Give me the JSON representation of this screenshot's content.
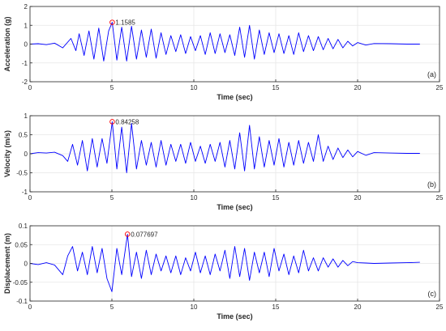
{
  "chart_data": [
    {
      "type": "line",
      "panel_label": "(a)",
      "xlabel": "Time (sec)",
      "ylabel": "Acceleration (g)",
      "xlim": [
        0,
        25
      ],
      "ylim": [
        -2,
        2
      ],
      "xticks": [
        "0",
        "5",
        "10",
        "15",
        "20",
        "25"
      ],
      "yticks": [
        "-2",
        "-1",
        "0",
        "1",
        "2"
      ],
      "grid": true,
      "series_color": "#0000ff",
      "peak": {
        "x": 5.02,
        "y": 1.1585,
        "label": "1.1585"
      },
      "series": [
        {
          "x": [
            0,
            0.5,
            1,
            1.5,
            2,
            2.5,
            2.8,
            3,
            3.3,
            3.6,
            3.9,
            4.2,
            4.5,
            4.8,
            5.02,
            5.3,
            5.6,
            5.9,
            6.2,
            6.5,
            6.8,
            7.1,
            7.4,
            7.7,
            8,
            8.3,
            8.6,
            8.9,
            9.2,
            9.5,
            9.8,
            10.1,
            10.4,
            10.7,
            11,
            11.3,
            11.6,
            11.9,
            12.2,
            12.5,
            12.8,
            13.1,
            13.4,
            13.7,
            14,
            14.3,
            14.6,
            14.9,
            15.2,
            15.5,
            15.8,
            16.1,
            16.4,
            16.7,
            17,
            17.3,
            17.6,
            17.9,
            18.2,
            18.5,
            18.8,
            19.1,
            19.4,
            19.7,
            20,
            20.5,
            21,
            22,
            23,
            23.8
          ],
          "values": [
            0,
            0.02,
            -0.03,
            0.05,
            -0.2,
            0.3,
            -0.35,
            0.55,
            -0.6,
            0.7,
            -0.8,
            0.85,
            -0.9,
            0.7,
            1.1585,
            -0.85,
            0.9,
            -0.9,
            0.95,
            -0.8,
            0.75,
            -0.7,
            0.8,
            -0.75,
            0.6,
            -0.55,
            0.45,
            -0.4,
            0.5,
            -0.5,
            0.4,
            -0.35,
            0.45,
            -0.55,
            0.6,
            -0.5,
            0.55,
            -0.45,
            0.5,
            -0.6,
            0.9,
            -0.7,
            1.0,
            -0.8,
            0.75,
            -0.55,
            0.6,
            -0.45,
            0.55,
            -0.5,
            0.45,
            -0.55,
            0.6,
            -0.4,
            0.45,
            -0.35,
            0.4,
            -0.3,
            0.3,
            -0.25,
            0.25,
            -0.2,
            0.15,
            -0.1,
            0.08,
            -0.05,
            0.03,
            0.02,
            0,
            0
          ]
        }
      ]
    },
    {
      "type": "line",
      "panel_label": "(b)",
      "xlabel": "Time (sec)",
      "ylabel": "Velocity (m/s)",
      "xlim": [
        0,
        25
      ],
      "ylim": [
        -1,
        1
      ],
      "xticks": [
        "0",
        "5",
        "10",
        "15",
        "20",
        "25"
      ],
      "yticks": [
        "-1",
        "-0.5",
        "0",
        "0.5",
        "1"
      ],
      "grid": true,
      "series_color": "#0000ff",
      "peak": {
        "x": 5.02,
        "y": 0.84258,
        "label": "0.84258"
      },
      "series": [
        {
          "x": [
            0,
            0.5,
            1,
            1.5,
            2,
            2.3,
            2.6,
            2.9,
            3.2,
            3.5,
            3.8,
            4.1,
            4.4,
            4.7,
            5.02,
            5.3,
            5.6,
            5.9,
            6.2,
            6.5,
            6.8,
            7.1,
            7.4,
            7.7,
            8,
            8.3,
            8.6,
            8.9,
            9.2,
            9.5,
            9.8,
            10.1,
            10.4,
            10.7,
            11,
            11.3,
            11.6,
            11.9,
            12.2,
            12.5,
            12.8,
            13.1,
            13.4,
            13.7,
            14,
            14.3,
            14.6,
            14.9,
            15.2,
            15.5,
            15.8,
            16.1,
            16.4,
            16.7,
            17,
            17.3,
            17.6,
            17.9,
            18.2,
            18.5,
            18.8,
            19.1,
            19.4,
            19.7,
            20,
            20.5,
            21,
            22,
            23,
            23.8
          ],
          "values": [
            0,
            0.03,
            0.02,
            0.04,
            -0.05,
            -0.2,
            0.25,
            -0.3,
            0.35,
            -0.45,
            0.4,
            -0.35,
            0.4,
            -0.25,
            0.84258,
            -0.4,
            0.7,
            -0.5,
            0.8,
            -0.4,
            0.35,
            -0.3,
            0.3,
            -0.35,
            0.35,
            -0.3,
            0.25,
            -0.2,
            0.25,
            -0.25,
            0.3,
            -0.2,
            0.2,
            -0.25,
            0.25,
            -0.2,
            0.3,
            -0.35,
            0.35,
            -0.4,
            0.55,
            -0.45,
            0.75,
            -0.4,
            0.45,
            -0.35,
            0.35,
            -0.3,
            0.4,
            -0.35,
            0.3,
            -0.3,
            0.35,
            -0.25,
            0.3,
            -0.2,
            0.5,
            -0.2,
            0.2,
            -0.15,
            0.15,
            -0.1,
            0.1,
            -0.08,
            0.06,
            -0.04,
            0.03,
            0.02,
            0.01,
            0.01
          ]
        }
      ]
    },
    {
      "type": "line",
      "panel_label": "(c)",
      "xlabel": "Time (sec)",
      "ylabel": "Displacement (m)",
      "xlim": [
        0,
        25
      ],
      "ylim": [
        -0.1,
        0.1
      ],
      "xticks": [
        "0",
        "5",
        "10",
        "15",
        "20",
        "25"
      ],
      "yticks": [
        "-0.1",
        "-0.05",
        "0",
        "0.05",
        "0.1"
      ],
      "grid": true,
      "series_color": "#0000ff",
      "peak": {
        "x": 5.95,
        "y": 0.077697,
        "label": "0.077697"
      },
      "series": [
        {
          "x": [
            0,
            0.5,
            1,
            1.5,
            2,
            2.3,
            2.6,
            2.9,
            3.2,
            3.5,
            3.8,
            4.1,
            4.4,
            4.7,
            5,
            5.3,
            5.6,
            5.95,
            6.2,
            6.5,
            6.8,
            7.1,
            7.4,
            7.7,
            8,
            8.3,
            8.6,
            8.9,
            9.2,
            9.5,
            9.8,
            10.1,
            10.4,
            10.7,
            11,
            11.3,
            11.6,
            11.9,
            12.2,
            12.5,
            12.8,
            13.1,
            13.4,
            13.7,
            14,
            14.3,
            14.6,
            14.9,
            15.2,
            15.5,
            15.8,
            16.1,
            16.4,
            16.7,
            17,
            17.3,
            17.6,
            17.9,
            18.2,
            18.5,
            18.8,
            19.1,
            19.4,
            19.7,
            20,
            20.5,
            21,
            22,
            23,
            23.8
          ],
          "values": [
            0,
            -0.003,
            0.002,
            -0.004,
            -0.03,
            0.02,
            0.045,
            -0.02,
            0.03,
            -0.03,
            0.045,
            -0.025,
            0.04,
            -0.04,
            -0.075,
            0.04,
            -0.03,
            0.077697,
            -0.035,
            0.03,
            -0.04,
            0.035,
            -0.03,
            0.025,
            -0.02,
            0.02,
            -0.025,
            0.02,
            -0.03,
            0.015,
            -0.02,
            0.03,
            -0.025,
            0.02,
            -0.03,
            0.025,
            -0.02,
            0.035,
            -0.04,
            0.045,
            -0.035,
            0.04,
            -0.045,
            0.03,
            -0.025,
            0.03,
            -0.035,
            0.04,
            -0.02,
            0.025,
            -0.03,
            0.02,
            -0.025,
            0.035,
            -0.02,
            0.015,
            -0.02,
            0.015,
            -0.01,
            0.012,
            -0.01,
            0.008,
            -0.006,
            0.005,
            0.002,
            0.001,
            0,
            0.001,
            0.002,
            0.003
          ]
        }
      ]
    }
  ]
}
